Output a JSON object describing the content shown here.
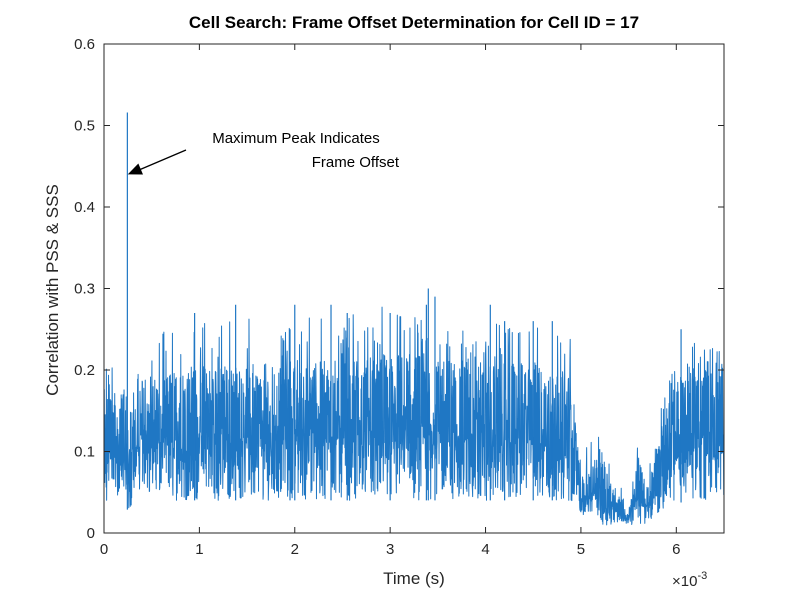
{
  "chart_data": {
    "type": "line",
    "title": "Cell Search: Frame Offset Determination for Cell ID = 17",
    "xlabel": "Time (s)",
    "ylabel": "Correlation with PSS & SSS",
    "x_multiplier_base": "×10",
    "x_multiplier_exp": "-3",
    "xlim": [
      0,
      6.5
    ],
    "ylim": [
      0,
      0.6
    ],
    "xticks": [
      "0",
      "1",
      "2",
      "3",
      "4",
      "5",
      "6"
    ],
    "yticks": [
      "0",
      "0.1",
      "0.2",
      "0.3",
      "0.4",
      "0.5",
      "0.6"
    ],
    "grid": false,
    "line_color": "#1f77c4",
    "series": [
      {
        "x_range": [
          0,
          6.5
        ],
        "envelope": [
          [
            0.0,
            0.04,
            0.16,
            0.2
          ],
          [
            0.1,
            0.04,
            0.16,
            0.21
          ],
          [
            0.2,
            0.05,
            0.15,
            0.19
          ],
          [
            0.24,
            0.03,
            0.13,
            0.18
          ],
          [
            0.28,
            0.02,
            0.1,
            0.15
          ],
          [
            0.35,
            0.04,
            0.17,
            0.22
          ],
          [
            0.5,
            0.04,
            0.17,
            0.25
          ],
          [
            1.0,
            0.04,
            0.18,
            0.26
          ],
          [
            2.0,
            0.04,
            0.18,
            0.27
          ],
          [
            3.0,
            0.04,
            0.19,
            0.28
          ],
          [
            3.5,
            0.04,
            0.19,
            0.27
          ],
          [
            4.0,
            0.04,
            0.18,
            0.26
          ],
          [
            4.5,
            0.04,
            0.18,
            0.26
          ],
          [
            4.9,
            0.04,
            0.17,
            0.24
          ],
          [
            5.0,
            0.02,
            0.06,
            0.1
          ],
          [
            5.1,
            0.02,
            0.07,
            0.12
          ],
          [
            5.2,
            0.01,
            0.09,
            0.13
          ],
          [
            5.3,
            0.01,
            0.06,
            0.09
          ],
          [
            5.4,
            0.01,
            0.04,
            0.06
          ],
          [
            5.5,
            0.01,
            0.02,
            0.05
          ],
          [
            5.6,
            0.01,
            0.08,
            0.11
          ],
          [
            5.7,
            0.01,
            0.05,
            0.08
          ],
          [
            5.8,
            0.02,
            0.09,
            0.14
          ],
          [
            5.9,
            0.03,
            0.14,
            0.19
          ],
          [
            6.1,
            0.04,
            0.18,
            0.22
          ],
          [
            6.3,
            0.04,
            0.19,
            0.26
          ],
          [
            6.5,
            0.04,
            0.18,
            0.24
          ]
        ],
        "spikes": [
          [
            0.245,
            0.516
          ],
          [
            0.95,
            0.27
          ],
          [
            1.38,
            0.28
          ],
          [
            1.95,
            0.25
          ],
          [
            2.0,
            0.28
          ],
          [
            2.38,
            0.28
          ],
          [
            2.55,
            0.27
          ],
          [
            3.0,
            0.27
          ],
          [
            3.4,
            0.3
          ],
          [
            3.47,
            0.29
          ],
          [
            3.38,
            0.28
          ],
          [
            4.05,
            0.28
          ],
          [
            4.2,
            0.26
          ],
          [
            4.5,
            0.26
          ],
          [
            4.7,
            0.26
          ],
          [
            6.05,
            0.25
          ]
        ]
      }
    ],
    "annotation": {
      "line1": "Maximum Peak Indicates",
      "line2": "Frame Offset",
      "arrow_target": [
        0.27,
        0.44
      ]
    }
  }
}
